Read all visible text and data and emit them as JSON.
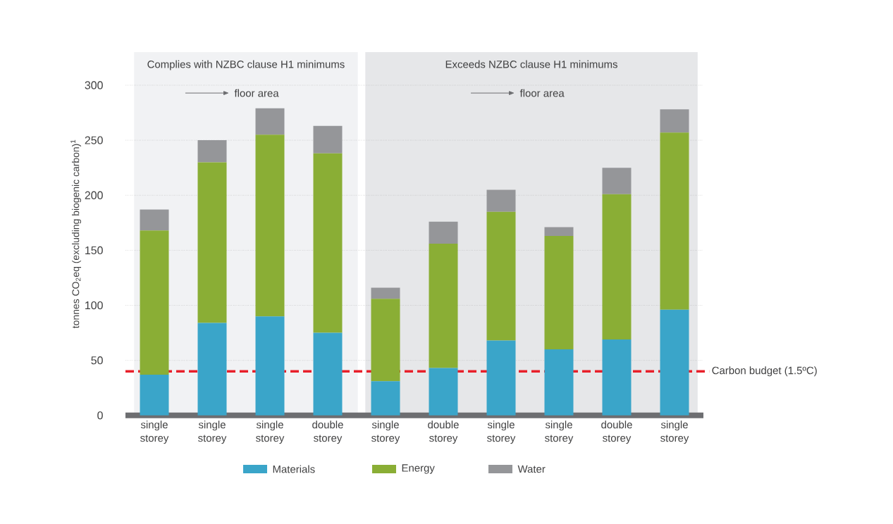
{
  "chart_data": {
    "type": "bar",
    "stacked": true,
    "ylabel": "tonnes CO$_{2}$eq (excluding biogenic carbon)$^{1}$",
    "categories": [
      "single storey",
      "single storey",
      "single storey",
      "double storey",
      "single storey",
      "double storey",
      "single storey",
      "single storey",
      "double storey",
      "single storey"
    ],
    "series": [
      {
        "name": "Materials",
        "color": "#3aa5c9",
        "values": [
          37,
          84,
          90,
          75,
          31,
          43,
          68,
          60,
          69,
          96
        ]
      },
      {
        "name": "Energy",
        "color": "#8aae35",
        "values": [
          131,
          146,
          165,
          163,
          75,
          113,
          117,
          103,
          132,
          161
        ]
      },
      {
        "name": "Water",
        "color": "#959699",
        "values": [
          19,
          20,
          24,
          25,
          10,
          20,
          20,
          8,
          24,
          21
        ]
      }
    ],
    "ylim": [
      0,
      330
    ],
    "yticks": [
      0,
      50,
      100,
      150,
      200,
      250,
      300
    ],
    "grid": "y",
    "legend": "bottom",
    "ref_lines": [
      {
        "axis": "y",
        "value": 40,
        "label": "Carbon budget (1.5ºC)",
        "color": "#e8202a",
        "line_style": "dashed"
      }
    ],
    "annotations": [
      "Complies with NZBC clause H1 minimums",
      "floor area",
      "Exceeds NZBC clause H1 minimums",
      "floor area"
    ]
  }
}
